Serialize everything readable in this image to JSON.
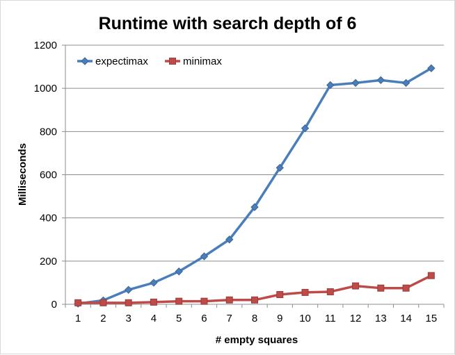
{
  "chart_data": {
    "type": "line",
    "title": "Runtime with search depth of 6",
    "xlabel": "# empty squares",
    "ylabel": "Milliseconds",
    "categories": [
      "1",
      "2",
      "3",
      "4",
      "5",
      "6",
      "7",
      "8",
      "9",
      "10",
      "11",
      "12",
      "13",
      "14",
      "15"
    ],
    "ylim": [
      0,
      1200
    ],
    "yticks": [
      0,
      200,
      400,
      600,
      800,
      1000,
      1200
    ],
    "grid": true,
    "legend_position": "top-left",
    "series": [
      {
        "name": "expectimax",
        "color": "#4a7ebb",
        "marker": "diamond",
        "values": [
          3,
          18,
          67,
          100,
          152,
          222,
          300,
          450,
          632,
          815,
          1015,
          1025,
          1038,
          1025,
          1093
        ]
      },
      {
        "name": "minimax",
        "color": "#be4b48",
        "marker": "square",
        "values": [
          7,
          7,
          7,
          10,
          14,
          14,
          20,
          20,
          45,
          55,
          58,
          85,
          75,
          75,
          133
        ]
      }
    ]
  }
}
